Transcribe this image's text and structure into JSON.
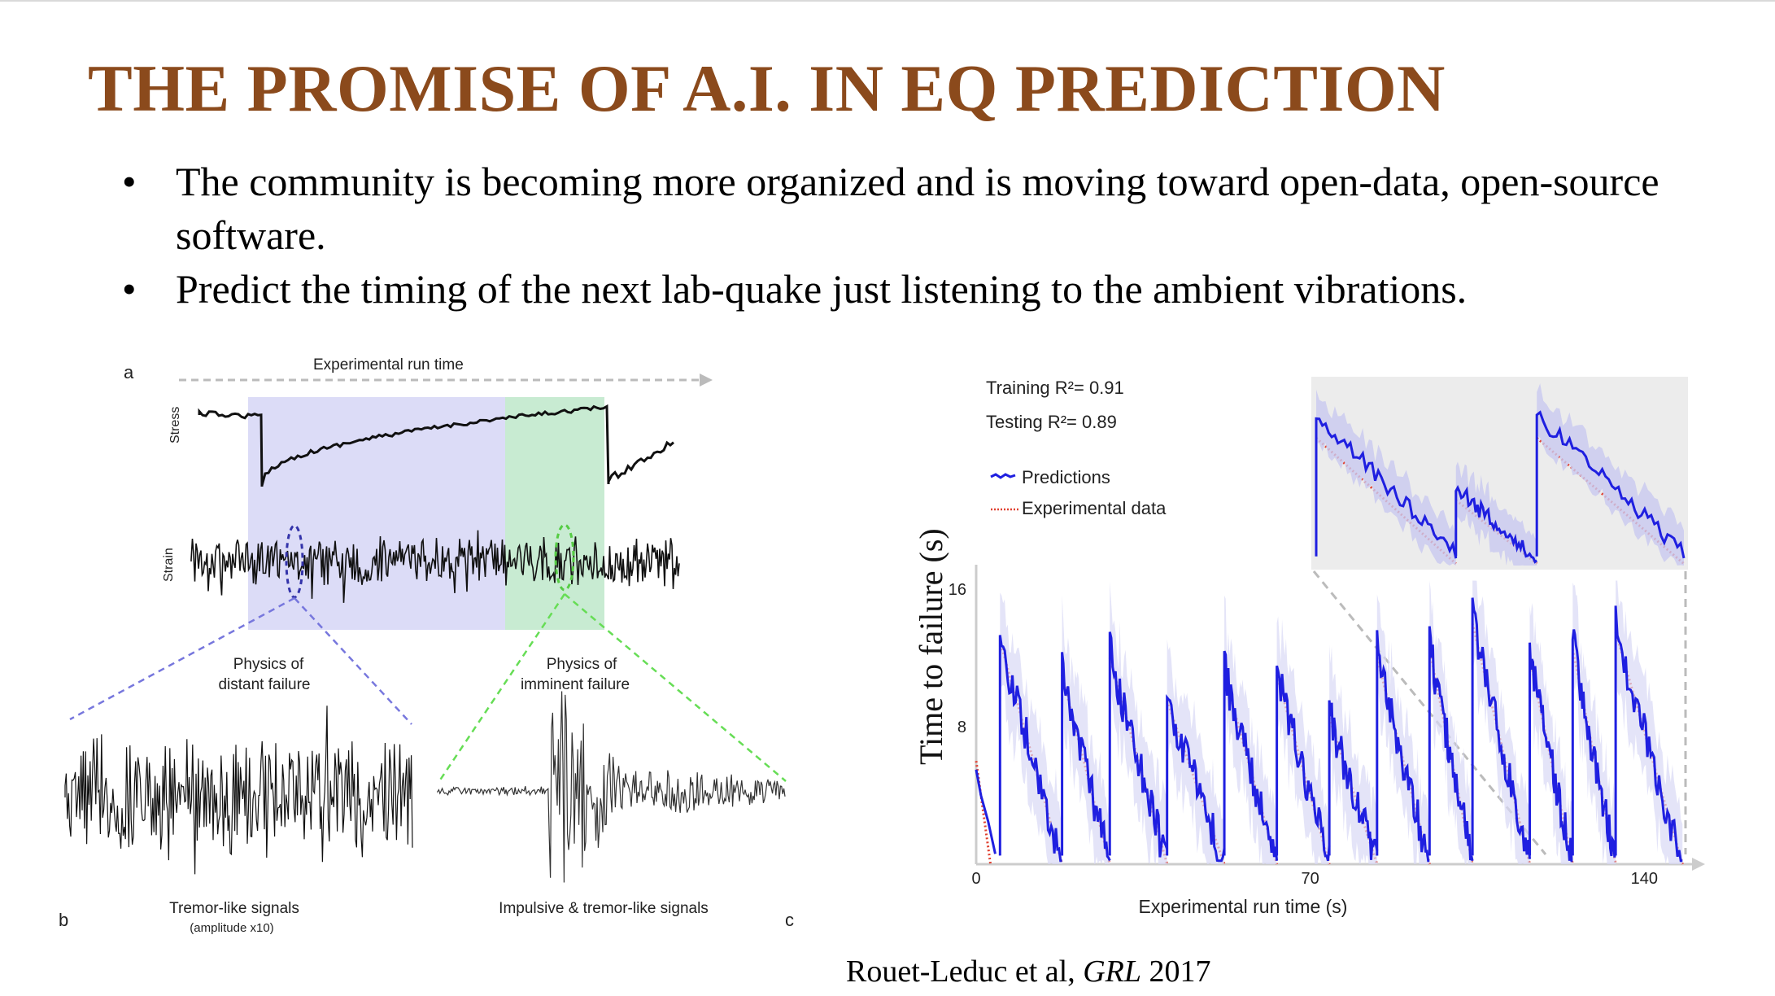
{
  "slide": {
    "title": "THE PROMISE OF A.I. IN EQ PREDICTION",
    "bullets": [
      "The community is becoming more organized and is moving toward open-data, open-source software.",
      "Predict the timing of the next lab-quake just listening to the ambient vibrations."
    ],
    "citation": {
      "authors": "Rouet-Leduc et al, ",
      "journal": "GRL",
      "year": " 2017"
    }
  },
  "left_figure": {
    "panel_a": "a",
    "panel_b": "b",
    "panel_c": "c",
    "run_time_label": "Experimental run time",
    "stress_label": "Stress",
    "strain_label": "Strain",
    "distant_label": [
      "Physics of",
      "distant failure"
    ],
    "imminent_label": [
      "Physics of",
      "imminent failure"
    ],
    "tremor_label": "Tremor-like signals",
    "tremor_sub": "(amplitude x10)",
    "impulsive_label": "Impulsive & tremor-like signals",
    "colors": {
      "blue_region": "#dcdcf7",
      "green_region": "#c8ebd2",
      "blue_dash": "#7777dd",
      "green_dash": "#66dd55"
    }
  },
  "chart_data": {
    "type": "line",
    "title": "",
    "xlabel": "Experimental run time (s)",
    "ylabel": "Time to failure (s)",
    "xlim": [
      0,
      150
    ],
    "ylim": [
      0,
      16
    ],
    "xticks": [
      0,
      70,
      140
    ],
    "yticks": [
      8,
      16
    ],
    "annotations": [
      "Training R²= 0.91",
      "Testing R²= 0.89"
    ],
    "legend": {
      "placement": "top-left",
      "entries": [
        "Predictions",
        "Experimental data"
      ]
    },
    "series": [
      {
        "name": "Experimental data",
        "style": "dotted",
        "color": "#e04030",
        "segments": [
          [
            0,
            6
          ],
          [
            1,
            4
          ],
          [
            2,
            3
          ],
          [
            3,
            0
          ],
          [
            3.2,
            6.5
          ],
          [
            4,
            0.5
          ],
          [
            5,
            13
          ],
          [
            10,
            11
          ],
          [
            14,
            2
          ],
          [
            18,
            0.2
          ],
          [
            18.1,
            11
          ],
          [
            22,
            6
          ],
          [
            28,
            0.2
          ],
          [
            28.1,
            12
          ],
          [
            32,
            9
          ],
          [
            40,
            0.3
          ],
          [
            40.1,
            10
          ],
          [
            44,
            6
          ],
          [
            52,
            0.2
          ],
          [
            52.1,
            11
          ],
          [
            56,
            7
          ],
          [
            63,
            0.2
          ],
          [
            63.1,
            11
          ],
          [
            67,
            8
          ],
          [
            78,
            0.3
          ],
          [
            78.1,
            9
          ],
          [
            83,
            5
          ],
          [
            92,
            0.2
          ],
          [
            92.1,
            10
          ],
          [
            97,
            6
          ],
          [
            107,
            0.2
          ],
          [
            107.1,
            14
          ],
          [
            113,
            7
          ],
          [
            120,
            0.2
          ],
          [
            120.1,
            10
          ],
          [
            124,
            6
          ],
          [
            132,
            0.2
          ],
          [
            132.1,
            12
          ],
          [
            137,
            8
          ],
          [
            148,
            0.3
          ]
        ]
      },
      {
        "name": "Predictions",
        "style": "solid",
        "color": "#1f1fe0",
        "points_note": "predicted time to failure tracking experimental cycles"
      }
    ],
    "experimental_cycles": [
      {
        "start": 5,
        "end": 18,
        "peak": 13
      },
      {
        "start": 18,
        "end": 28,
        "peak": 11
      },
      {
        "start": 28,
        "end": 40,
        "peak": 12
      },
      {
        "start": 40,
        "end": 52,
        "peak": 9.5
      },
      {
        "start": 52,
        "end": 63,
        "peak": 11
      },
      {
        "start": 63,
        "end": 74,
        "peak": 11
      },
      {
        "start": 74,
        "end": 84,
        "peak": 8.5
      },
      {
        "start": 84,
        "end": 95,
        "peak": 12
      },
      {
        "start": 95,
        "end": 104,
        "peak": 12.5
      },
      {
        "start": 104,
        "end": 116,
        "peak": 14
      },
      {
        "start": 116,
        "end": 125,
        "peak": 12
      },
      {
        "start": 125,
        "end": 134,
        "peak": 12.5
      },
      {
        "start": 134,
        "end": 148,
        "peak": 13.5
      }
    ],
    "inset": {
      "description_none": "",
      "cycles": [
        {
          "start": 0,
          "end": 0.38,
          "peak": 0.82
        },
        {
          "start": 0.38,
          "end": 0.6,
          "peak": 0.42
        },
        {
          "start": 0.6,
          "end": 1.0,
          "peak": 0.82
        }
      ]
    }
  }
}
